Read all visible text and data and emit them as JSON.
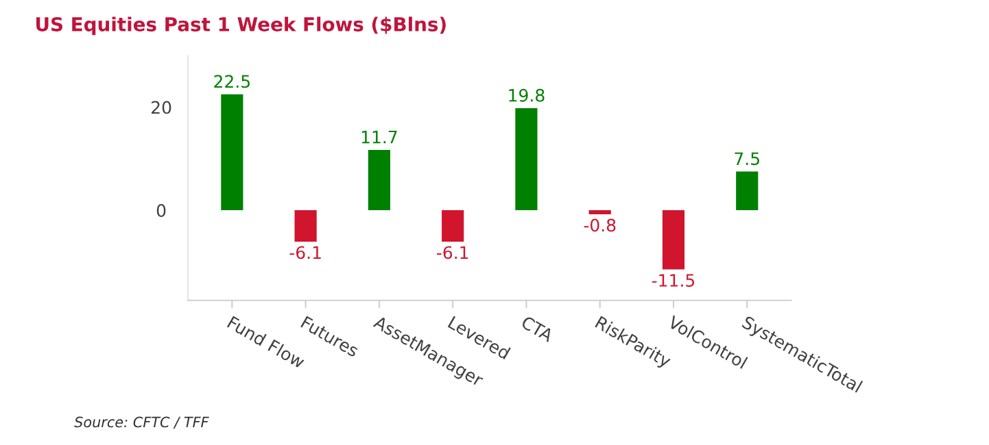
{
  "chart_data": {
    "type": "bar",
    "title": "US Equities Past 1 Week Flows ($Blns)",
    "categories": [
      "Fund Flow",
      "Futures",
      "AssetManager",
      "Levered",
      "CTA",
      "RiskParity",
      "VolControl",
      "SystematicTotal"
    ],
    "values": [
      22.5,
      -6.1,
      11.7,
      -6.1,
      19.8,
      -0.8,
      -11.5,
      7.5
    ],
    "colors": [
      "#008000",
      "#d0152d",
      "#008000",
      "#d0152d",
      "#008000",
      "#d0152d",
      "#d0152d",
      "#008000"
    ],
    "data_labels": true,
    "ylim": [
      -17.5,
      30
    ],
    "yticks": [
      0,
      20
    ],
    "grid": false,
    "legend": false,
    "annotations": [
      "Source: CFTC / TFF"
    ]
  }
}
